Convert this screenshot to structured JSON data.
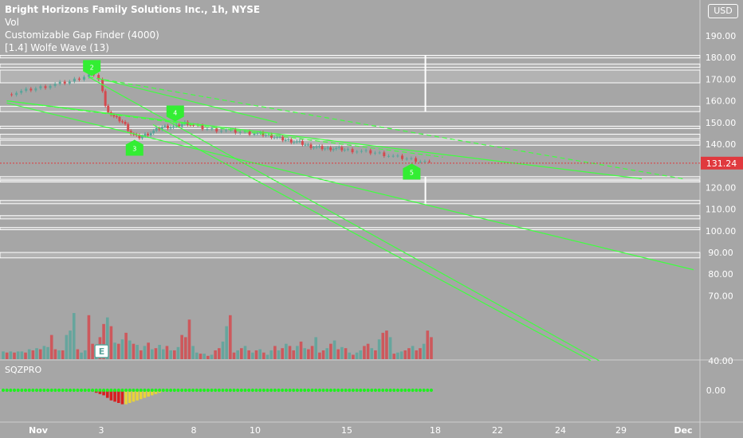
{
  "legend": {
    "title": "Bright Horizons Family Solutions Inc., 1h, NYSE",
    "lines": [
      "Vol",
      "Customizable Gap Finder (4000)",
      "[1.4] Wolfe Wave (13)"
    ]
  },
  "currency": "USD",
  "indicator_label": "SQZPRO",
  "earnings_label": "E",
  "colors": {
    "background": "#a6a6a6",
    "up": "#5aa59b",
    "down": "#d44a4f",
    "wolfe_line": "#40ff40",
    "price_tag": "#e0393e",
    "gap_band": "#ffffff",
    "squeeze_dot": "#22ee22"
  },
  "chart_data": [
    {
      "type": "candlestick",
      "price_tag": "131.24",
      "last_price": 131.24,
      "ylim": [
        40,
        200
      ],
      "y_ticks": [
        "190.00",
        "180.00",
        "170.00",
        "160.00",
        "150.00",
        "140.00",
        "120.00",
        "110.00",
        "100.00",
        "90.00",
        "80.00",
        "70.00",
        "40.00"
      ],
      "x_ticks": [
        "Nov",
        "3",
        "8",
        "10",
        "15",
        "18",
        "22",
        "24",
        "29",
        "Dec"
      ],
      "x_tick_days": [
        1,
        3,
        8,
        10,
        15,
        18,
        22,
        24,
        29,
        32
      ],
      "last_day": 17.8,
      "close_path": [
        [
          0.0,
          163
        ],
        [
          1.0,
          166
        ],
        [
          2.0,
          169
        ],
        [
          2.6,
          172
        ],
        [
          3.0,
          170
        ],
        [
          3.15,
          158
        ],
        [
          3.6,
          153
        ],
        [
          4.2,
          150
        ],
        [
          4.6,
          145
        ],
        [
          5.0,
          143
        ],
        [
          5.6,
          145
        ],
        [
          6.3,
          148
        ],
        [
          7.0,
          148
        ],
        [
          7.6,
          150
        ],
        [
          8.4,
          147
        ],
        [
          9.2,
          146
        ],
        [
          10.0,
          145
        ],
        [
          10.8,
          144
        ],
        [
          11.6,
          142
        ],
        [
          12.3,
          141
        ],
        [
          13.0,
          139
        ],
        [
          13.8,
          138
        ],
        [
          14.5,
          138
        ],
        [
          15.2,
          137
        ],
        [
          16.0,
          136
        ],
        [
          16.7,
          134
        ],
        [
          17.2,
          133
        ],
        [
          17.6,
          132
        ],
        [
          17.8,
          131.24
        ]
      ],
      "gap_bands": [
        [
          179.8,
          181
        ],
        [
          175.4,
          177
        ],
        [
          168.3,
          174.2
        ],
        [
          155,
          157.5
        ],
        [
          147.2,
          148.3
        ],
        [
          142.5,
          144.6
        ],
        [
          139.5,
          141.8
        ],
        [
          123.8,
          125
        ],
        [
          122.5,
          123.2
        ],
        [
          112.5,
          114
        ],
        [
          105.5,
          107
        ],
        [
          100.5,
          101.5
        ],
        [
          87.5,
          90
        ]
      ],
      "wolfe_markers": [
        {
          "day": 2.7,
          "price": 175.5,
          "label": "2"
        },
        {
          "day": 4.8,
          "price": 138,
          "label": "3"
        },
        {
          "day": 7.0,
          "price": 154.5,
          "label": "4"
        },
        {
          "day": 17.2,
          "price": 127,
          "label": "5"
        }
      ],
      "wolfe_lines": [
        [
          [
            0.0,
            160
          ],
          [
            30.0,
            124
          ]
        ],
        [
          [
            0.0,
            159
          ],
          [
            32.5,
            82
          ]
        ],
        [
          [
            2.6,
            171
          ],
          [
            27.2,
            40
          ]
        ],
        [
          [
            5.8,
            149
          ],
          [
            26.5,
            40
          ]
        ],
        [
          [
            3.0,
            170
          ],
          [
            11.2,
            150
          ]
        ]
      ],
      "wolfe_dashed": [
        [
          [
            2.6,
            171
          ],
          [
            32.0,
            124
          ]
        ],
        [
          [
            0.0,
            160
          ],
          [
            18.5,
            134
          ]
        ]
      ]
    },
    {
      "type": "bar",
      "name": "Vol",
      "values": [
        7,
        6,
        7,
        6,
        7,
        7,
        6,
        9,
        8,
        10,
        9,
        12,
        11,
        22,
        9,
        8,
        8,
        22,
        26,
        42,
        9,
        6,
        8,
        40,
        14,
        7,
        20,
        32,
        38,
        30,
        15,
        14,
        18,
        24,
        17,
        14,
        13,
        8,
        12,
        15,
        9,
        10,
        13,
        9,
        12,
        8,
        8,
        11,
        22,
        20,
        36,
        12,
        6,
        5,
        5,
        3,
        4,
        8,
        10,
        16,
        30,
        40,
        6,
        8,
        10,
        12,
        8,
        6,
        8,
        9,
        6,
        4,
        8,
        12,
        8,
        10,
        14,
        12,
        8,
        12,
        16,
        10,
        9,
        12,
        20,
        6,
        8,
        10,
        14,
        17,
        9,
        11,
        10,
        6,
        4,
        6,
        8,
        12,
        14,
        10,
        8,
        18,
        24,
        26,
        20,
        5,
        6,
        7,
        8,
        10,
        12,
        8,
        10,
        14,
        26,
        20
      ],
      "up_flags": [
        1,
        0,
        1,
        0,
        1,
        1,
        0,
        1,
        0,
        1,
        0,
        1,
        1,
        0,
        0,
        1,
        0,
        1,
        1,
        1,
        0,
        1,
        1,
        0,
        0,
        1,
        0,
        0,
        1,
        0,
        1,
        0,
        1,
        0,
        1,
        0,
        1,
        0,
        1,
        0,
        1,
        0,
        1,
        1,
        0,
        1,
        0,
        1,
        0,
        0,
        0,
        1,
        1,
        0,
        1,
        0,
        1,
        0,
        0,
        1,
        1,
        0,
        0,
        1,
        0,
        1,
        0,
        1,
        0,
        1,
        0,
        1,
        1,
        0,
        1,
        0,
        1,
        0,
        0,
        1,
        0,
        1,
        0,
        0,
        1,
        0,
        0,
        1,
        0,
        1,
        0,
        1,
        0,
        1,
        0,
        1,
        1,
        0,
        0,
        1,
        0,
        1,
        0,
        0,
        1,
        0,
        1,
        1,
        0,
        0,
        1,
        0,
        0,
        1,
        0,
        0
      ]
    },
    {
      "type": "bar",
      "name": "SQZPRO",
      "y_ticks": [
        "0.00"
      ],
      "values": [
        0,
        0,
        0,
        0,
        0,
        0,
        0,
        0,
        0,
        0,
        0,
        0,
        0,
        0,
        0,
        0,
        0,
        0,
        0,
        0,
        0,
        0,
        0,
        0,
        -1,
        -2,
        -3,
        -4,
        -6,
        -8,
        -9,
        -10,
        -11,
        -11,
        -10,
        -9,
        -8,
        -7,
        -6,
        -5,
        -4,
        -3,
        -2,
        -1,
        0,
        0,
        0,
        0,
        0,
        0,
        0,
        0,
        0,
        0,
        0,
        0,
        0,
        0,
        0,
        0,
        0,
        0,
        0,
        0,
        0,
        0,
        0,
        0,
        0,
        0,
        0,
        0,
        0,
        0,
        0,
        0,
        0,
        0,
        0,
        0,
        0,
        0,
        0,
        0,
        0,
        0,
        0,
        0,
        0,
        0,
        0,
        0,
        0,
        0,
        0,
        0,
        0,
        0,
        0,
        0,
        0,
        0,
        0,
        0,
        0,
        0,
        0,
        0,
        0,
        0,
        0,
        0,
        0,
        0,
        0,
        0
      ]
    }
  ]
}
